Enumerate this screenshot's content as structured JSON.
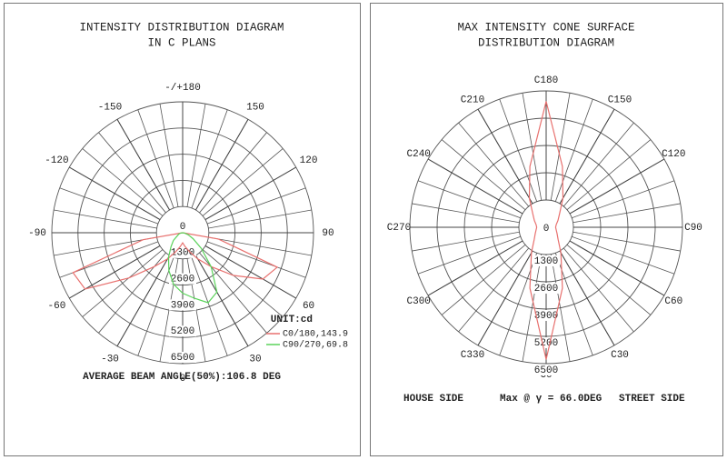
{
  "chart_data": [
    {
      "type": "polar",
      "title": [
        "INTENSITY DISTRIBUTION DIAGRAM",
        "IN C PLANS"
      ],
      "angle_ticks": [
        {
          "value": 180,
          "label": "-/+180"
        },
        150,
        120,
        90,
        60,
        30,
        0,
        -30,
        -60,
        -90,
        -120,
        -150
      ],
      "rlim": [
        0,
        6500
      ],
      "rticks": [
        0,
        1300,
        2600,
        3900,
        5200,
        6500
      ],
      "unit_label": "UNIT:cd",
      "theta": [
        -90,
        -80,
        -70,
        -60,
        -50,
        -40,
        -30,
        -20,
        -10,
        0,
        10,
        20,
        30,
        40,
        50,
        60,
        70,
        80,
        90
      ],
      "series": [
        {
          "name": "C0/180,143.9",
          "color": "#e8716f",
          "values": [
            0,
            2000,
            5800,
            5600,
            3500,
            2200,
            1500,
            1000,
            700,
            500,
            700,
            1000,
            1500,
            2200,
            3300,
            4600,
            5000,
            1800,
            0
          ]
        },
        {
          "name": "C90/270,69.8",
          "color": "#5ad35a",
          "values": [
            0,
            100,
            200,
            300,
            600,
            900,
            1400,
            2000,
            2600,
            3000,
            3300,
            3700,
            3400,
            2200,
            1200,
            600,
            300,
            100,
            0
          ]
        }
      ],
      "footer": "AVERAGE BEAM ANGLE(50%):106.8 DEG"
    },
    {
      "type": "polar",
      "title": [
        "MAX INTENSITY CONE SURFACE",
        "DISTRIBUTION DIAGRAM"
      ],
      "angle_ticks": [
        {
          "value": 180,
          "label": "C180"
        },
        {
          "value": 150,
          "label": "C150"
        },
        {
          "value": 120,
          "label": "C120"
        },
        {
          "value": 90,
          "label": "C90"
        },
        {
          "value": 60,
          "label": "C60"
        },
        {
          "value": 30,
          "label": "C30"
        },
        {
          "value": 0,
          "label": "C0"
        },
        {
          "value": 330,
          "label": "C330"
        },
        {
          "value": 300,
          "label": "C300"
        },
        {
          "value": 270,
          "label": "C270"
        },
        {
          "value": 240,
          "label": "C240"
        },
        {
          "value": 210,
          "label": "C210"
        }
      ],
      "rlim": [
        0,
        6500
      ],
      "rticks": [
        0,
        1300,
        2600,
        3900,
        5200,
        6500
      ],
      "theta": [
        0,
        15,
        30,
        45,
        60,
        75,
        90,
        105,
        120,
        135,
        150,
        165,
        180,
        195,
        210,
        225,
        240,
        255,
        270,
        285,
        300,
        315,
        330,
        345
      ],
      "closed": true,
      "series": [
        {
          "color": "#e8716f",
          "values": [
            6300,
            3000,
            1400,
            800,
            600,
            500,
            450,
            500,
            650,
            900,
            1600,
            3000,
            6000,
            3000,
            1600,
            900,
            650,
            500,
            450,
            500,
            600,
            800,
            1400,
            3000
          ]
        }
      ],
      "footer_left": "HOUSE SIDE",
      "footer_center": "Max @ γ = 66.0DEG",
      "footer_right": "STREET SIDE"
    }
  ]
}
